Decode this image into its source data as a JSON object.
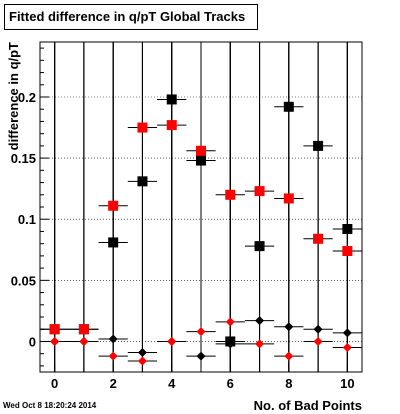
{
  "chart_data": {
    "type": "scatter",
    "title": "Fitted difference in q/pT  Global Tracks",
    "xlabel": "No. of Bad Points",
    "ylabel": "difference in q/pT",
    "xlim": [
      -0.5,
      10.5
    ],
    "ylim": [
      -0.025,
      0.245
    ],
    "grid": true,
    "x_ticks": [
      0,
      2,
      4,
      6,
      8,
      10
    ],
    "x_tick_labels": [
      "0",
      "2",
      "4",
      "6",
      "8",
      "10"
    ],
    "y_ticks": [
      0,
      0.05,
      0.1,
      0.15,
      0.2
    ],
    "y_tick_labels": [
      "0",
      "0.05",
      "0.1",
      "0.15",
      "0.2"
    ],
    "series": [
      {
        "marker": "square",
        "color": "#000000",
        "x": [
          0,
          1,
          2,
          3,
          4,
          5,
          6,
          7,
          8,
          9,
          10
        ],
        "y": [
          0.01,
          0.01,
          0.081,
          0.131,
          0.198,
          0.148,
          0,
          0.078,
          0.192,
          0.16,
          0.092
        ]
      },
      {
        "marker": "square",
        "color": "#ff0000",
        "x": [
          0,
          1,
          2,
          3,
          4,
          5,
          6,
          7,
          8,
          9,
          10
        ],
        "y": [
          0.01,
          0.01,
          0.111,
          0.175,
          0.177,
          0.156,
          0.12,
          0.123,
          0.117,
          0.084,
          0.074
        ]
      },
      {
        "marker": "diamond",
        "color": "#000000",
        "x": [
          0,
          1,
          2,
          3,
          4,
          5,
          6,
          7,
          8,
          9,
          10
        ],
        "y": [
          0.0,
          0.0,
          0.002,
          -0.009,
          0,
          -0.012,
          -0.002,
          0.017,
          0.012,
          0.01,
          0.007
        ]
      },
      {
        "marker": "diamond",
        "color": "#ff0000",
        "x": [
          0,
          1,
          2,
          3,
          4,
          5,
          6,
          7,
          8,
          9,
          10
        ],
        "y": [
          0.0,
          0.0,
          -0.012,
          -0.016,
          0,
          0.008,
          0.016,
          -0.002,
          -0.012,
          0.0,
          -0.005
        ]
      }
    ]
  },
  "timestamp": "Wed Oct  8 18:20:24 2014"
}
